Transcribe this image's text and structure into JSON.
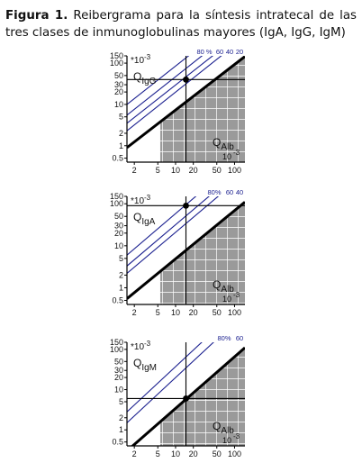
{
  "caption": {
    "label": "Figura 1.",
    "text": "Reibergrama para la síntesis intratecal de las tres clases de inmunoglobulinas  mayores (IgA, IgG, IgM)"
  },
  "colors": {
    "reference_lines": "#1a1f8f",
    "limit_line": "#000000",
    "hatch_fill": "#9a9a9a",
    "text": "#111111"
  },
  "chart_data": [
    {
      "type": "line",
      "scale": "log-log",
      "y_exponent_label": "*10",
      "y_exponent_power": "-3",
      "ylabel_main": "Q",
      "ylabel_sub": "IgG",
      "xlabel_main": "Q",
      "xlabel_sub": "Alb",
      "xlabel_exponent_base": "10",
      "xlabel_exponent_power": "-3",
      "x_ticks": [
        "2",
        "5",
        "10",
        "20",
        "50",
        "100"
      ],
      "y_ticks": [
        "150",
        "100",
        "50",
        "30",
        "20",
        "10",
        "5",
        "2",
        "1",
        "0.5"
      ],
      "xlim": [
        1.5,
        150
      ],
      "ylim": [
        0.4,
        150
      ],
      "fraction_labels": [
        "80 %",
        "60",
        "40",
        "20"
      ],
      "series": [
        {
          "name": "80 %",
          "x": [
            1.5,
            150
          ],
          "y": [
            10,
            1800
          ]
        },
        {
          "name": "60",
          "x": [
            1.5,
            150
          ],
          "y": [
            5.5,
            1000
          ]
        },
        {
          "name": "40",
          "x": [
            1.5,
            150
          ],
          "y": [
            3.5,
            620
          ]
        },
        {
          "name": "20",
          "x": [
            1.5,
            150
          ],
          "y": [
            2.3,
            430
          ]
        }
      ],
      "limit_curve": {
        "x": [
          1.5,
          150
        ],
        "y": [
          0.9,
          145
        ]
      },
      "hatch_region": {
        "x_from": 5.5,
        "x_to": 150
      },
      "crosshair": {
        "x": 15,
        "y": 40
      }
    },
    {
      "type": "line",
      "scale": "log-log",
      "y_exponent_label": "*10",
      "y_exponent_power": "-3",
      "ylabel_main": "Q",
      "ylabel_sub": "IgA",
      "xlabel_main": "Q",
      "xlabel_sub": "Alb",
      "xlabel_exponent_base": "10",
      "xlabel_exponent_power": "-3",
      "x_ticks": [
        "2",
        "5",
        "10",
        "20",
        "50",
        "100"
      ],
      "y_ticks": [
        "150",
        "100",
        "50",
        "30",
        "20",
        "10",
        "5",
        "2",
        "1",
        "0.5"
      ],
      "xlim": [
        1.5,
        150
      ],
      "ylim": [
        0.4,
        150
      ],
      "fraction_labels": [
        "80%",
        "60",
        "40"
      ],
      "series": [
        {
          "name": "80%",
          "x": [
            1.5,
            150
          ],
          "y": [
            6,
            1500
          ]
        },
        {
          "name": "60",
          "x": [
            1.5,
            150
          ],
          "y": [
            3.3,
            800
          ]
        },
        {
          "name": "40",
          "x": [
            1.5,
            150
          ],
          "y": [
            2.2,
            520
          ]
        }
      ],
      "limit_curve": {
        "x": [
          1.5,
          150
        ],
        "y": [
          0.55,
          110
        ]
      },
      "hatch_region": {
        "x_from": 5.5,
        "x_to": 150
      },
      "crosshair": {
        "x": 15,
        "y": 90
      }
    },
    {
      "type": "line",
      "scale": "log-log",
      "y_exponent_label": "*10",
      "y_exponent_power": "-3",
      "ylabel_main": "Q",
      "ylabel_sub": "IgM",
      "xlabel_main": "Q",
      "xlabel_sub": "Alb",
      "xlabel_exponent_base": "10",
      "xlabel_exponent_power": "-3",
      "x_ticks": [
        "2",
        "5",
        "10",
        "20",
        "50",
        "100"
      ],
      "y_ticks": [
        "150",
        "100",
        "50",
        "30",
        "20",
        "10",
        "5",
        "2",
        "1",
        "0.5"
      ],
      "xlim": [
        1.5,
        150
      ],
      "ylim": [
        0.4,
        150
      ],
      "fraction_labels": [
        "80%",
        "60"
      ],
      "series": [
        {
          "name": "80%",
          "x": [
            1.5,
            150
          ],
          "y": [
            2.8,
            1500
          ]
        },
        {
          "name": "60",
          "x": [
            1.5,
            150
          ],
          "y": [
            1.5,
            800
          ]
        }
      ],
      "limit_curve": {
        "x": [
          1.5,
          150
        ],
        "y": [
          0.3,
          110
        ]
      },
      "hatch_region": {
        "x_from": 5.5,
        "x_to": 150
      },
      "crosshair": {
        "x": 15,
        "y": 6
      }
    }
  ]
}
